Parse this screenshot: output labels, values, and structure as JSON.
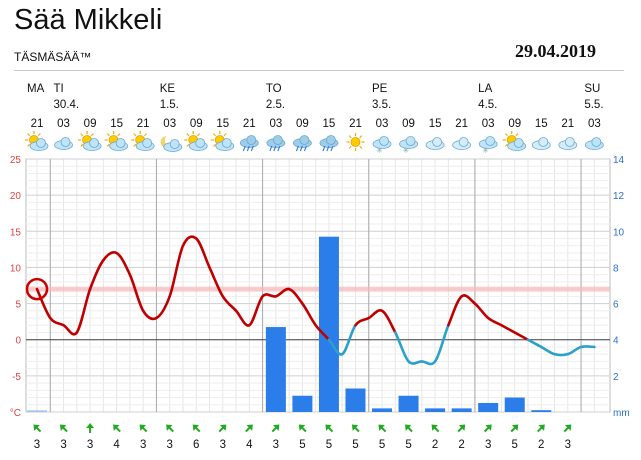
{
  "header": {
    "city_title": "Sää Mikkeli",
    "brand": "TÄSMÄSÄÄ™",
    "date": "29.04.2019"
  },
  "chart_data": {
    "type": "line",
    "days": [
      {
        "label": "MA",
        "date": "",
        "hour_index": 0
      },
      {
        "label": "TI",
        "date": "30.4.",
        "hour_index": 1
      },
      {
        "label": "KE",
        "date": "1.5.",
        "hour_index": 5
      },
      {
        "label": "TO",
        "date": "2.5.",
        "hour_index": 9
      },
      {
        "label": "PE",
        "date": "3.5.",
        "hour_index": 13
      },
      {
        "label": "LA",
        "date": "4.5.",
        "hour_index": 17
      },
      {
        "label": "SU",
        "date": "5.5.",
        "hour_index": 21
      }
    ],
    "hours": [
      "21",
      "03",
      "09",
      "15",
      "21",
      "03",
      "09",
      "15",
      "21",
      "03",
      "09",
      "15",
      "21",
      "03",
      "09",
      "15",
      "21",
      "03",
      "09",
      "15",
      "21",
      "03"
    ],
    "weather_icons": [
      "partly-sunny",
      "partly-cloudy",
      "partly-sunny",
      "partly-sunny",
      "partly-sunny",
      "night-moon",
      "partly-sunny",
      "partly-sunny",
      "thunder-rain",
      "thunder-rain",
      "rain",
      "rain",
      "sunny",
      "snow",
      "snow",
      "cloudy",
      "cloudy",
      "snow",
      "partly-sunny",
      "cloudy",
      "cloudy",
      "partly-cloudy"
    ],
    "temperature": {
      "unit": "°C",
      "ylim": [
        -10,
        25
      ],
      "ticks": [
        "25",
        "20",
        "15",
        "10",
        "5",
        "0",
        "-5",
        "°C"
      ],
      "x": [
        "MA 21",
        "TI 00",
        "TI 03",
        "TI 06",
        "TI 09",
        "TI 12",
        "TI 15",
        "TI 18",
        "TI 21",
        "KE 00",
        "KE 03",
        "KE 06",
        "KE 09",
        "KE 12",
        "KE 15",
        "KE 18",
        "KE 21",
        "TO 00",
        "TO 03",
        "TO 06",
        "TO 09",
        "TO 12",
        "TO 15",
        "TO 18",
        "TO 21",
        "PE 00",
        "PE 03",
        "PE 06",
        "PE 09",
        "PE 12",
        "PE 15",
        "PE 18",
        "PE 21",
        "LA 00",
        "LA 03",
        "LA 06",
        "LA 09",
        "LA 12",
        "LA 15",
        "LA 18",
        "LA 21",
        "SU 00",
        "SU 03"
      ],
      "values": [
        7,
        3,
        2,
        1,
        7,
        11,
        12,
        9,
        4,
        3,
        6,
        13,
        14,
        10,
        6,
        4,
        2,
        6,
        6,
        7,
        5,
        2,
        0,
        -2,
        2,
        3,
        4,
        1,
        -3,
        -3,
        -3,
        2,
        6,
        5,
        3,
        2,
        1,
        0,
        -1,
        -2,
        -2,
        -1,
        -1
      ],
      "warm_color": "#c00000",
      "cold_color": "#2aa0cc",
      "marked_value": 7,
      "reference_line": 7
    },
    "precipitation": {
      "unit": "mm",
      "ylim": [
        0,
        14
      ],
      "ticks": [
        "14",
        "12",
        "10",
        "8",
        "6",
        "4",
        "2",
        "mm"
      ],
      "x": [
        "MA 21",
        "TO 03",
        "TO 09",
        "TO 15",
        "TO 21",
        "PE 03",
        "PE 09",
        "PE 15",
        "PE 21",
        "LA 03",
        "LA 09",
        "LA 15"
      ],
      "values": [
        0.1,
        4.7,
        0.9,
        9.7,
        1.3,
        0.2,
        0.9,
        0.2,
        0.2,
        0.5,
        0.8,
        0.1
      ],
      "color": "#2b7de9"
    },
    "wind": {
      "speeds": [
        "3",
        "3",
        "3",
        "4",
        "3",
        "3",
        "6",
        "3",
        "4",
        "3",
        "5",
        "5",
        "5",
        "5",
        "5",
        "2",
        "2",
        "3",
        "5",
        "2",
        "3"
      ],
      "directions": [
        "nw",
        "nw",
        "n",
        "nw",
        "nw",
        "nw",
        "nw",
        "ne",
        "ne",
        "ne",
        "nw",
        "nw",
        "nw",
        "nw",
        "nw",
        "nw",
        "ne",
        "ne",
        "ne",
        "ne",
        "ne"
      ],
      "color": "#22aa22"
    },
    "grid": true,
    "legend": "none"
  }
}
